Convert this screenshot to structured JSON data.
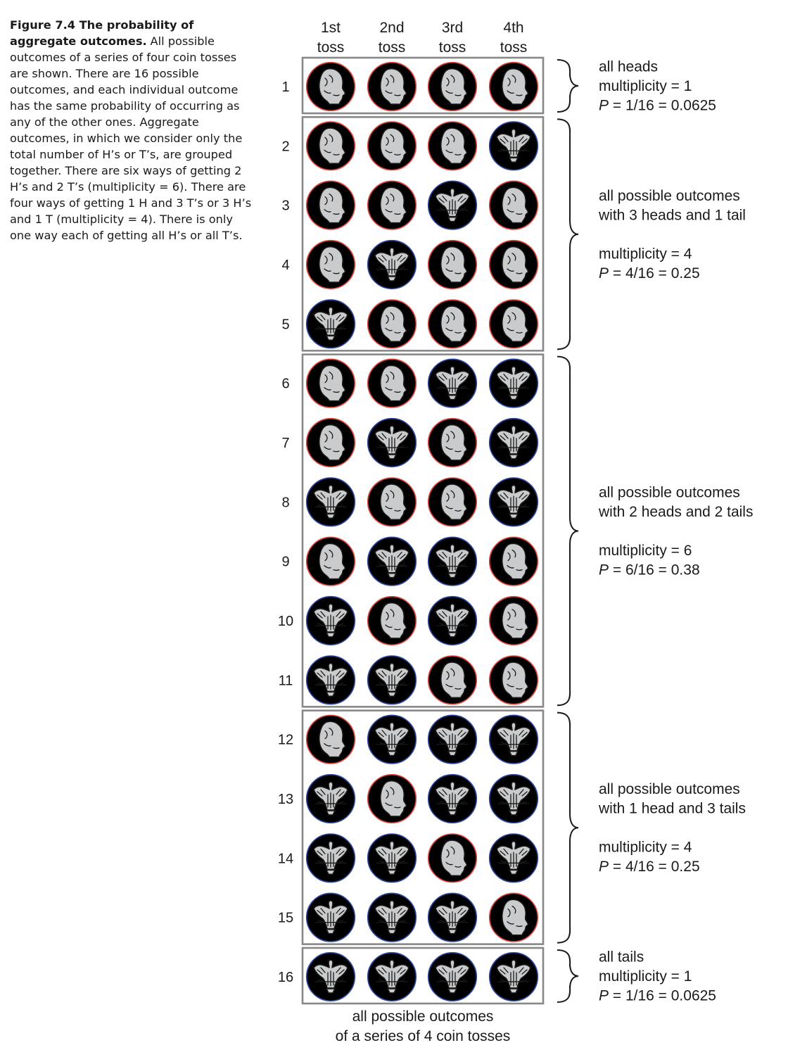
{
  "caption": {
    "lead": "Figure 7.4 The probability of aggregate outcomes.",
    "body": "All possible outcomes of a series of four coin tosses are shown. There are 16 possible outcomes, and each individual outcome has the same probability of occurring as any of the other ones. Aggregate outcomes, in which we consider only the total number of H’s or T’s, are grouped together. There are six ways of getting 2 H’s and 2 T’s (multiplicity = 6). There are four ways of getting 1 H and 3 T’s or 3 H’s and 1 T (multiplicity = 4). There is only one way each of getting all H’s or all T’s."
  },
  "columns": [
    {
      "line1": "1st",
      "line2": "toss"
    },
    {
      "line1": "2nd",
      "line2": "toss"
    },
    {
      "line1": "3rd",
      "line2": "toss"
    },
    {
      "line1": "4th",
      "line2": "toss"
    }
  ],
  "rows": [
    {
      "num": "1",
      "coins": [
        "H",
        "H",
        "H",
        "H"
      ]
    },
    {
      "num": "2",
      "coins": [
        "H",
        "H",
        "H",
        "T"
      ]
    },
    {
      "num": "3",
      "coins": [
        "H",
        "H",
        "T",
        "H"
      ]
    },
    {
      "num": "4",
      "coins": [
        "H",
        "T",
        "H",
        "H"
      ]
    },
    {
      "num": "5",
      "coins": [
        "T",
        "H",
        "H",
        "H"
      ]
    },
    {
      "num": "6",
      "coins": [
        "H",
        "H",
        "T",
        "T"
      ]
    },
    {
      "num": "7",
      "coins": [
        "H",
        "T",
        "H",
        "T"
      ]
    },
    {
      "num": "8",
      "coins": [
        "T",
        "H",
        "H",
        "T"
      ]
    },
    {
      "num": "9",
      "coins": [
        "H",
        "T",
        "T",
        "H"
      ]
    },
    {
      "num": "10",
      "coins": [
        "T",
        "H",
        "T",
        "H"
      ]
    },
    {
      "num": "11",
      "coins": [
        "T",
        "T",
        "H",
        "H"
      ]
    },
    {
      "num": "12",
      "coins": [
        "H",
        "T",
        "T",
        "T"
      ]
    },
    {
      "num": "13",
      "coins": [
        "T",
        "H",
        "T",
        "T"
      ]
    },
    {
      "num": "14",
      "coins": [
        "T",
        "T",
        "H",
        "T"
      ]
    },
    {
      "num": "15",
      "coins": [
        "T",
        "T",
        "T",
        "H"
      ]
    },
    {
      "num": "16",
      "coins": [
        "T",
        "T",
        "T",
        "T"
      ]
    }
  ],
  "groups": [
    {
      "first_row": 1,
      "last_row": 1,
      "label": [
        "all heads",
        "multiplicity = 1",
        "P = 1/16 = 0.0625"
      ]
    },
    {
      "first_row": 2,
      "last_row": 5,
      "label": [
        "all possible outcomes",
        "with 3 heads and 1 tail",
        "",
        "multiplicity = 4",
        "P = 4/16 = 0.25"
      ]
    },
    {
      "first_row": 6,
      "last_row": 11,
      "label": [
        "all possible outcomes",
        "with 2 heads and 2 tails",
        "",
        "multiplicity = 6",
        "P = 6/16 = 0.38"
      ]
    },
    {
      "first_row": 12,
      "last_row": 15,
      "label": [
        "all possible outcomes",
        "with 1 head and 3 tails",
        "",
        "multiplicity = 4",
        "P = 4/16 = 0.25"
      ]
    },
    {
      "first_row": 16,
      "last_row": 16,
      "label": [
        "all tails",
        "multiplicity = 1",
        "P = 1/16 = 0.0625"
      ]
    }
  ],
  "footer": [
    "all possible outcomes",
    "of a series of 4 coin tosses"
  ],
  "coin_kinds": {
    "H": {
      "meaning": "heads",
      "icon": "portrait-head-icon",
      "fill": "#f2aaa8",
      "ring": "#e0483e"
    },
    "T": {
      "meaning": "tails",
      "icon": "eagle-icon",
      "fill": "#8294d0",
      "ring": "#2d48a0"
    }
  },
  "colors": {
    "frame": "#888888",
    "face": "#c9cbcc",
    "line": "#1a1a1a"
  }
}
